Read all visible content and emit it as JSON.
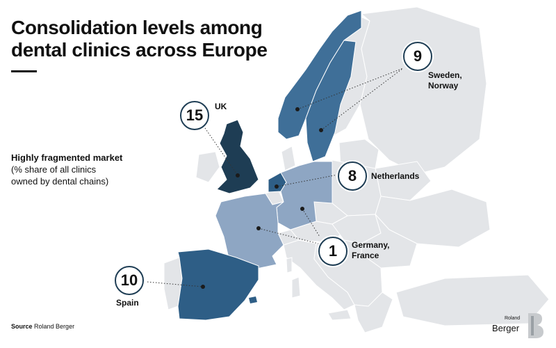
{
  "title_line1": "Consolidation levels among",
  "title_line2": "dental clinics across Europe",
  "legend": {
    "title": "Highly fragmented market",
    "subtitle_line1": "(% share of all clinics",
    "subtitle_line2": "owned by dental chains)"
  },
  "source": {
    "prefix": "Source",
    "text": "Roland Berger"
  },
  "logo": {
    "line1": "Roland",
    "line2": "Berger"
  },
  "colors": {
    "darkest": "#1e3d54",
    "dark": "#2e5e86",
    "medium": "#3f6f98",
    "light": "#8ea6c3",
    "other": "#e3e5e8"
  },
  "callouts": [
    {
      "id": "sweden-norway",
      "value": "9",
      "label_line1": "Sweden,",
      "label_line2": "Norway"
    },
    {
      "id": "uk",
      "value": "15",
      "label_line1": "UK",
      "label_line2": ""
    },
    {
      "id": "netherlands",
      "value": "8",
      "label_line1": "Netherlands",
      "label_line2": ""
    },
    {
      "id": "germany-france",
      "value": "1",
      "label_line1": "Germany,",
      "label_line2": "France"
    },
    {
      "id": "spain",
      "value": "10",
      "label_line1": "Spain",
      "label_line2": ""
    }
  ]
}
